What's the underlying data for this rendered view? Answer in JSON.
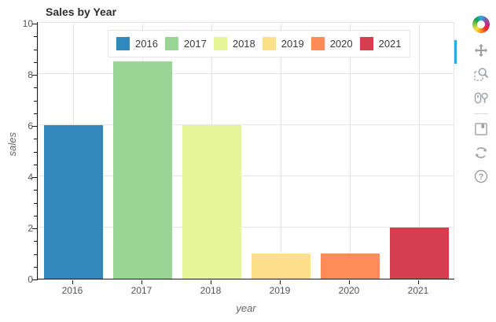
{
  "title": "Sales by Year",
  "chart_data": {
    "type": "bar",
    "title": "Sales by Year",
    "categories": [
      "2016",
      "2017",
      "2018",
      "2019",
      "2020",
      "2021"
    ],
    "values": [
      6,
      8.5,
      6,
      1,
      1,
      2
    ],
    "bar_colors": [
      "#3288bd",
      "#99d594",
      "#e6f598",
      "#fee08b",
      "#fc8d59",
      "#d53e4f"
    ],
    "xlabel": "year",
    "ylabel": "sales",
    "ylim": [
      0,
      10
    ],
    "yticks": [
      0,
      2,
      4,
      6,
      8,
      10
    ],
    "minor_tick_step": 0.5,
    "grid": true,
    "legend_position": "top_center"
  },
  "legend": {
    "entries": [
      {
        "label": "2016",
        "color": "#3288bd"
      },
      {
        "label": "2017",
        "color": "#99d594"
      },
      {
        "label": "2018",
        "color": "#e6f598"
      },
      {
        "label": "2019",
        "color": "#fee08b"
      },
      {
        "label": "2020",
        "color": "#fc8d59"
      },
      {
        "label": "2021",
        "color": "#d53e4f"
      }
    ]
  },
  "toolbar": {
    "logo_name": "bokeh-logo",
    "active_indicator_color": "#26aae1",
    "tools": [
      {
        "id": "pan",
        "label": "Pan",
        "active": true
      },
      {
        "id": "box-zoom",
        "label": "Box Zoom",
        "active": false
      },
      {
        "id": "wheel-zoom",
        "label": "Wheel Zoom",
        "active": false
      },
      {
        "id": "save",
        "label": "Save",
        "active": false
      },
      {
        "id": "reset",
        "label": "Reset",
        "active": false
      },
      {
        "id": "help",
        "label": "Help",
        "active": false
      }
    ]
  },
  "colors": {
    "grid": "#e6e6e6",
    "outline": "#e5e5e5",
    "axis_line": "#1a1a1a",
    "tick_label": "#555555",
    "axis_label": "#666666",
    "title": "#2f2f2f",
    "toolbar_icon": "#9aa0a5"
  }
}
